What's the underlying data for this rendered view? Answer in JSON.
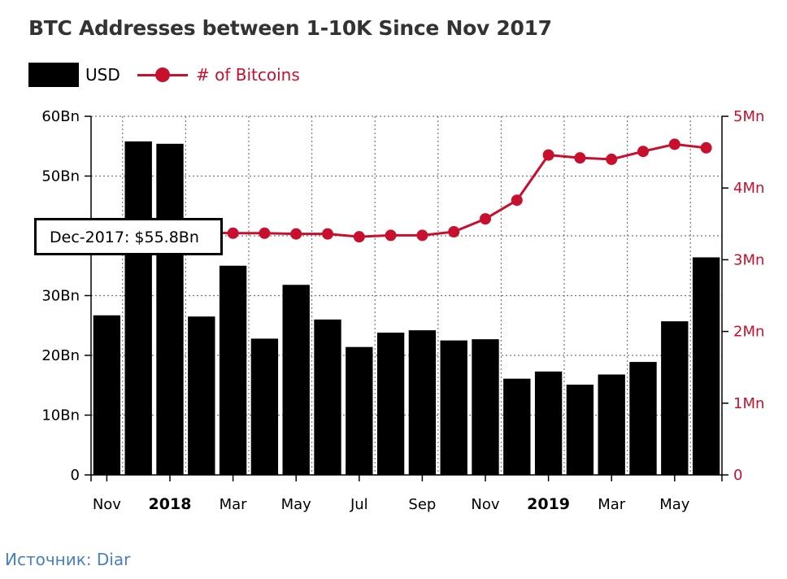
{
  "source_caption": "Источник: Diar",
  "chart_data": {
    "type": "bar",
    "title": "BTC Addresses between 1-10K Since Nov 2017",
    "x_tick_labels": [
      "Nov",
      "2018",
      "Mar",
      "May",
      "Jul",
      "Sep",
      "Nov",
      "2019",
      "Mar",
      "May"
    ],
    "x_tick_bold": [
      false,
      true,
      false,
      false,
      false,
      false,
      false,
      true,
      false,
      false
    ],
    "categories": [
      "Nov-2017",
      "Dec-2017",
      "Jan-2018",
      "Feb-2018",
      "Mar-2018",
      "Apr-2018",
      "May-2018",
      "Jun-2018",
      "Jul-2018",
      "Aug-2018",
      "Sep-2018",
      "Oct-2018",
      "Nov-2018",
      "Dec-2018",
      "Jan-2019",
      "Feb-2019",
      "Mar-2019",
      "Apr-2019",
      "May-2019",
      "Jun-2019"
    ],
    "series": [
      {
        "name": "USD",
        "axis": "left",
        "type": "bar",
        "color": "#000000",
        "values": [
          26.7,
          55.8,
          55.4,
          26.5,
          35.0,
          22.8,
          31.8,
          26.0,
          21.4,
          23.8,
          24.2,
          22.5,
          22.7,
          16.1,
          17.3,
          15.1,
          16.8,
          18.9,
          25.7,
          36.4
        ]
      },
      {
        "name": "# of Bitcoins",
        "axis": "right",
        "type": "line",
        "color": "#c8102e",
        "values": [
          3.42,
          3.4,
          3.38,
          3.38,
          3.37,
          3.37,
          3.36,
          3.36,
          3.32,
          3.34,
          3.34,
          3.39,
          3.57,
          3.83,
          4.46,
          4.42,
          4.4,
          4.51,
          4.61,
          4.56
        ]
      }
    ],
    "left_axis": {
      "ticks": [
        0,
        10,
        20,
        30,
        40,
        50,
        60
      ],
      "tick_labels": [
        "0",
        "10Bn",
        "20Bn",
        "30Bn",
        "40Bn",
        "50Bn",
        "60Bn"
      ],
      "ylim": [
        0,
        60
      ]
    },
    "right_axis": {
      "ticks": [
        0,
        1,
        2,
        3,
        4,
        5
      ],
      "tick_labels": [
        "0",
        "1Mn",
        "2Mn",
        "3Mn",
        "4Mn",
        "5Mn"
      ],
      "ylim": [
        0,
        5
      ]
    },
    "grid": true,
    "legend": "top-left",
    "tooltip": {
      "text": "Dec-2017: $55.8Bn",
      "category_index": 1
    }
  }
}
